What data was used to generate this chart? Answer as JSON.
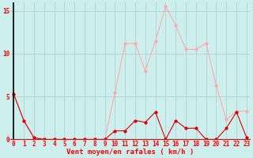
{
  "xlabel": "Vent moyen/en rafales ( km/h )",
  "background_color": "#cceeed",
  "grid_color": "#aacccc",
  "line_color_mean": "#dd0000",
  "line_color_gust": "#ffaaaa",
  "x": [
    0,
    1,
    2,
    3,
    4,
    5,
    6,
    7,
    8,
    9,
    10,
    11,
    12,
    13,
    14,
    15,
    16,
    17,
    18,
    19,
    20,
    21,
    22,
    23
  ],
  "y_mean": [
    5.3,
    2.2,
    0.2,
    0.0,
    0.0,
    0.0,
    0.0,
    0.0,
    0.0,
    0.0,
    1.0,
    1.0,
    2.2,
    2.0,
    3.2,
    0.0,
    2.2,
    1.3,
    1.3,
    0.0,
    0.0,
    1.3,
    3.2,
    0.2
  ],
  "y_gust": [
    5.3,
    2.2,
    0.2,
    0.0,
    0.0,
    0.0,
    0.0,
    0.0,
    0.0,
    0.0,
    5.5,
    11.2,
    11.2,
    8.0,
    11.5,
    15.5,
    13.3,
    10.5,
    10.5,
    11.2,
    6.3,
    2.3,
    3.3,
    3.3
  ],
  "ylim": [
    0,
    16
  ],
  "yticks": [
    0,
    5,
    10,
    15
  ],
  "xticks": [
    0,
    1,
    2,
    3,
    4,
    5,
    6,
    7,
    8,
    9,
    10,
    11,
    12,
    13,
    14,
    15,
    16,
    17,
    18,
    19,
    20,
    21,
    22,
    23
  ],
  "xlabel_fontsize": 6.5,
  "tick_fontsize": 5.5,
  "marker_size": 2.0,
  "linewidth": 0.8
}
